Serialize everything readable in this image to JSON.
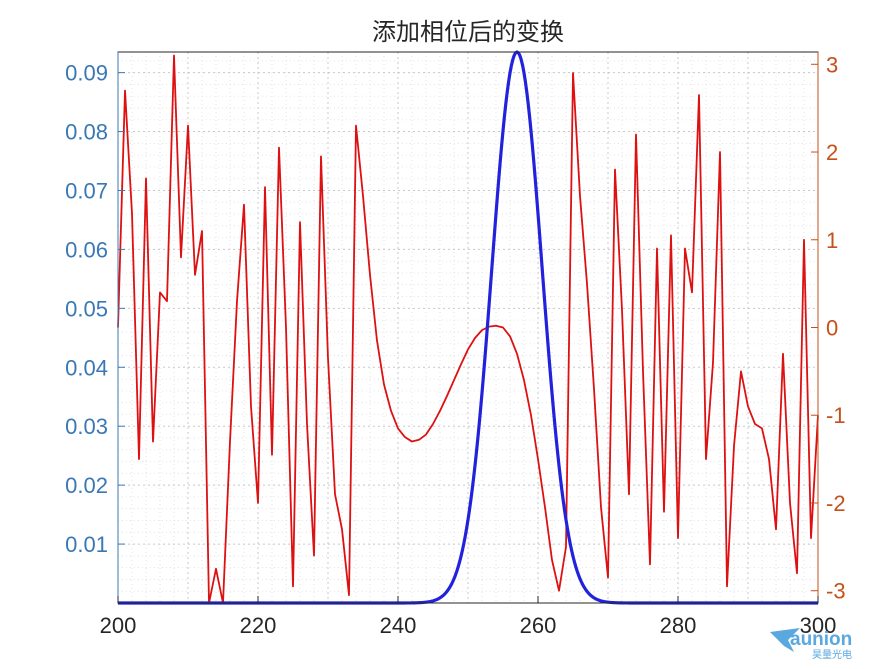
{
  "chart_data": {
    "type": "line",
    "title": "添加相位后的变换",
    "xlim": [
      200,
      300
    ],
    "ylim_left": [
      0,
      0.0935
    ],
    "ylim_right": [
      -3.14,
      3.14
    ],
    "x_ticks": [
      "200",
      "220",
      "240",
      "260",
      "280",
      "300"
    ],
    "x_tick_values": [
      200,
      220,
      240,
      260,
      280,
      300
    ],
    "y_left_ticks": [
      "0.01",
      "0.02",
      "0.03",
      "0.04",
      "0.05",
      "0.06",
      "0.07",
      "0.08",
      "0.09"
    ],
    "y_left_tick_values": [
      0.01,
      0.02,
      0.03,
      0.04,
      0.05,
      0.06,
      0.07,
      0.08,
      0.09
    ],
    "y_right_ticks": [
      "-3",
      "-2",
      "-1",
      "0",
      "1",
      "2",
      "3"
    ],
    "y_right_tick_values": [
      -3,
      -2,
      -1,
      0,
      1,
      2,
      3
    ],
    "grid": "dotted",
    "series": [
      {
        "axis": "left",
        "color": "#2222dd",
        "shape": "gaussian",
        "peak_x": 257,
        "peak_y": 0.0935,
        "sigma": 3.6,
        "x_range": [
          200,
          300
        ]
      },
      {
        "axis": "right",
        "color": "#dd1111",
        "x": [
          200,
          201,
          202,
          203,
          204,
          205,
          206,
          207,
          208,
          209,
          210,
          211,
          212,
          213,
          214,
          215,
          216,
          217,
          218,
          219,
          220,
          221,
          222,
          223,
          224,
          225,
          226,
          227,
          228,
          229,
          230,
          231,
          232,
          233,
          234,
          235,
          236,
          237,
          238,
          239,
          240,
          241,
          242,
          243,
          244,
          245,
          246,
          247,
          248,
          249,
          250,
          251,
          252,
          253,
          254,
          255,
          256,
          257,
          258,
          259,
          260,
          261,
          262,
          263,
          264,
          265,
          266,
          267,
          268,
          269,
          270,
          271,
          272,
          273,
          274,
          275,
          276,
          277,
          278,
          279,
          280,
          281,
          282,
          283,
          284,
          285,
          286,
          287,
          288,
          289,
          290,
          291,
          292,
          293,
          294,
          295,
          296,
          297,
          298,
          299,
          300
        ],
        "y": [
          0,
          2.7,
          1.3,
          -1.5,
          1.7,
          -1.3,
          0.4,
          0.3,
          3.1,
          0.8,
          2.3,
          0.6,
          1.1,
          -3.14,
          -2.75,
          -3.14,
          -1.3,
          0.3,
          1.4,
          -0.9,
          -2.0,
          1.6,
          -1.45,
          2.05,
          0,
          -2.95,
          1.2,
          -1.1,
          -2.6,
          1.95,
          -0.35,
          -1.9,
          -2.3,
          -3.05,
          2.3,
          1.5,
          0.6,
          -0.15,
          -0.65,
          -0.95,
          -1.15,
          -1.25,
          -1.3,
          -1.28,
          -1.22,
          -1.1,
          -0.95,
          -0.78,
          -0.6,
          -0.42,
          -0.25,
          -0.12,
          -0.03,
          0.01,
          0.02,
          0,
          -0.1,
          -0.3,
          -0.6,
          -1.0,
          -1.5,
          -2.05,
          -2.65,
          -3.0,
          -2.5,
          2.9,
          1.5,
          0.5,
          -0.7,
          -2.05,
          -2.85,
          1.8,
          0.2,
          -1.9,
          2.2,
          -0.5,
          -2.7,
          0.9,
          -2.1,
          1.05,
          -2.4,
          0.9,
          0.4,
          2.65,
          -1.5,
          -0.4,
          2.0,
          -2.95,
          -1.35,
          -0.5,
          -0.9,
          -1.1,
          -1.15,
          -1.5,
          -2.3,
          -0.3,
          -2.0,
          -2.8,
          1.0,
          -2.4,
          -1.0
        ],
        "x_range": [
          200,
          300
        ]
      }
    ]
  },
  "watermark": {
    "brand": "aunion",
    "subtitle": "昊量光电",
    "color": "#5aa8e0"
  }
}
